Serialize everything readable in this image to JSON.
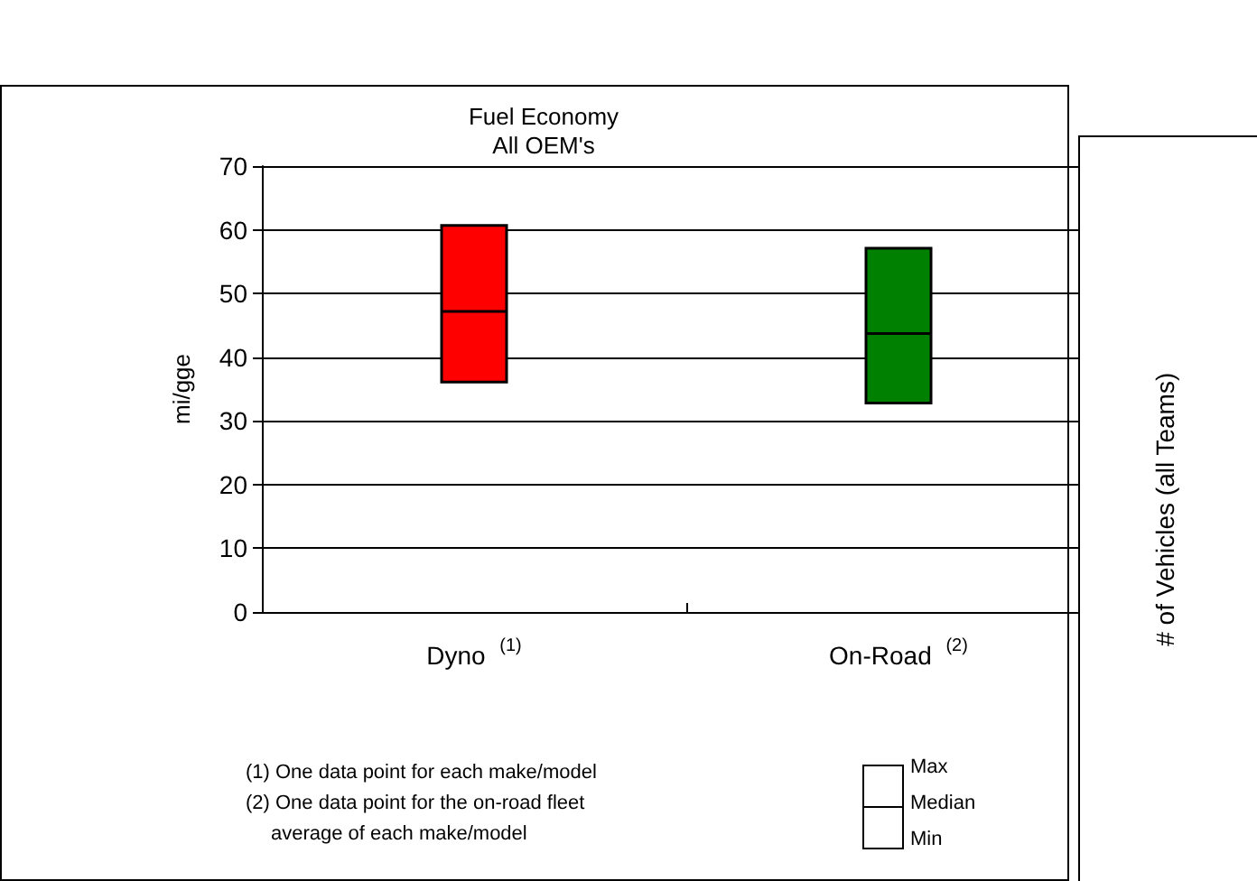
{
  "chart_data": [
    {
      "type": "box",
      "title": "Fuel Economy",
      "subtitle": "All OEM's",
      "ylabel": "mi/gge",
      "categories": [
        "Dyno $^{(1)}$",
        "On-Road $^{(2)}$"
      ],
      "boxes": [
        {
          "low": 36.1,
          "q1": 36.1,
          "median": 47.2,
          "q3": 60.7,
          "high": 60.7
        },
        {
          "low": 32.8,
          "q1": 32.8,
          "median": 43.7,
          "q3": 57.1,
          "high": 57.1
        }
      ],
      "colors": [
        "#ff0000",
        "#008000"
      ],
      "ylim": [
        0,
        70
      ],
      "yticks": [
        0,
        10,
        20,
        30,
        40,
        50,
        60,
        70
      ],
      "grid": "y",
      "annotations": [
        "(1) One data point for each make/model",
        "(2) One data point for the on-road fleet average of each make/model",
        "Max",
        "Median",
        "Min"
      ]
    },
    {
      "type": "other",
      "ylabel": "# of Vehicles (all Teams)"
    }
  ]
}
